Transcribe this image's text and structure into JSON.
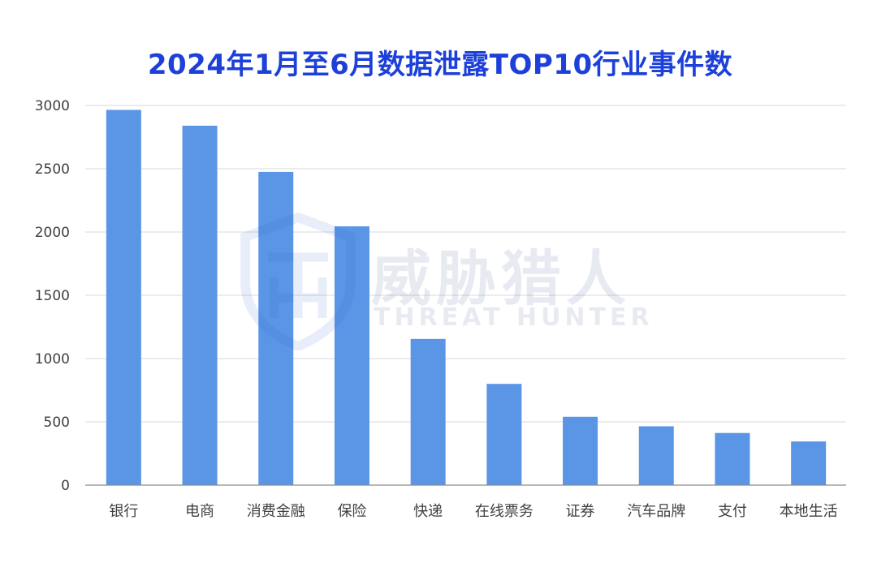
{
  "colors": {
    "title": "#1c40d9",
    "bar": "#5b95e5",
    "grid": "#d9d9d9",
    "axis": "#8c8c8c",
    "tick_text": "#404040"
  },
  "watermark": {
    "cn": "威胁猎人",
    "en": "THREAT HUNTER",
    "icon": "shield-th-logo-icon"
  },
  "chart_data": {
    "type": "bar",
    "title": "2024年1月至6月数据泄露TOP10行业事件数",
    "xlabel": "",
    "ylabel": "",
    "categories": [
      "银行",
      "电商",
      "消费金融",
      "保险",
      "快递",
      "在线票务",
      "证券",
      "汽车品牌",
      "支付",
      "本地生活"
    ],
    "values": [
      2965,
      2840,
      2475,
      2045,
      1155,
      800,
      540,
      465,
      412,
      345
    ],
    "ylim": [
      0,
      3000
    ],
    "yticks": [
      0,
      500,
      1000,
      1500,
      2000,
      2500,
      3000
    ],
    "grid": true,
    "legend": "none"
  }
}
